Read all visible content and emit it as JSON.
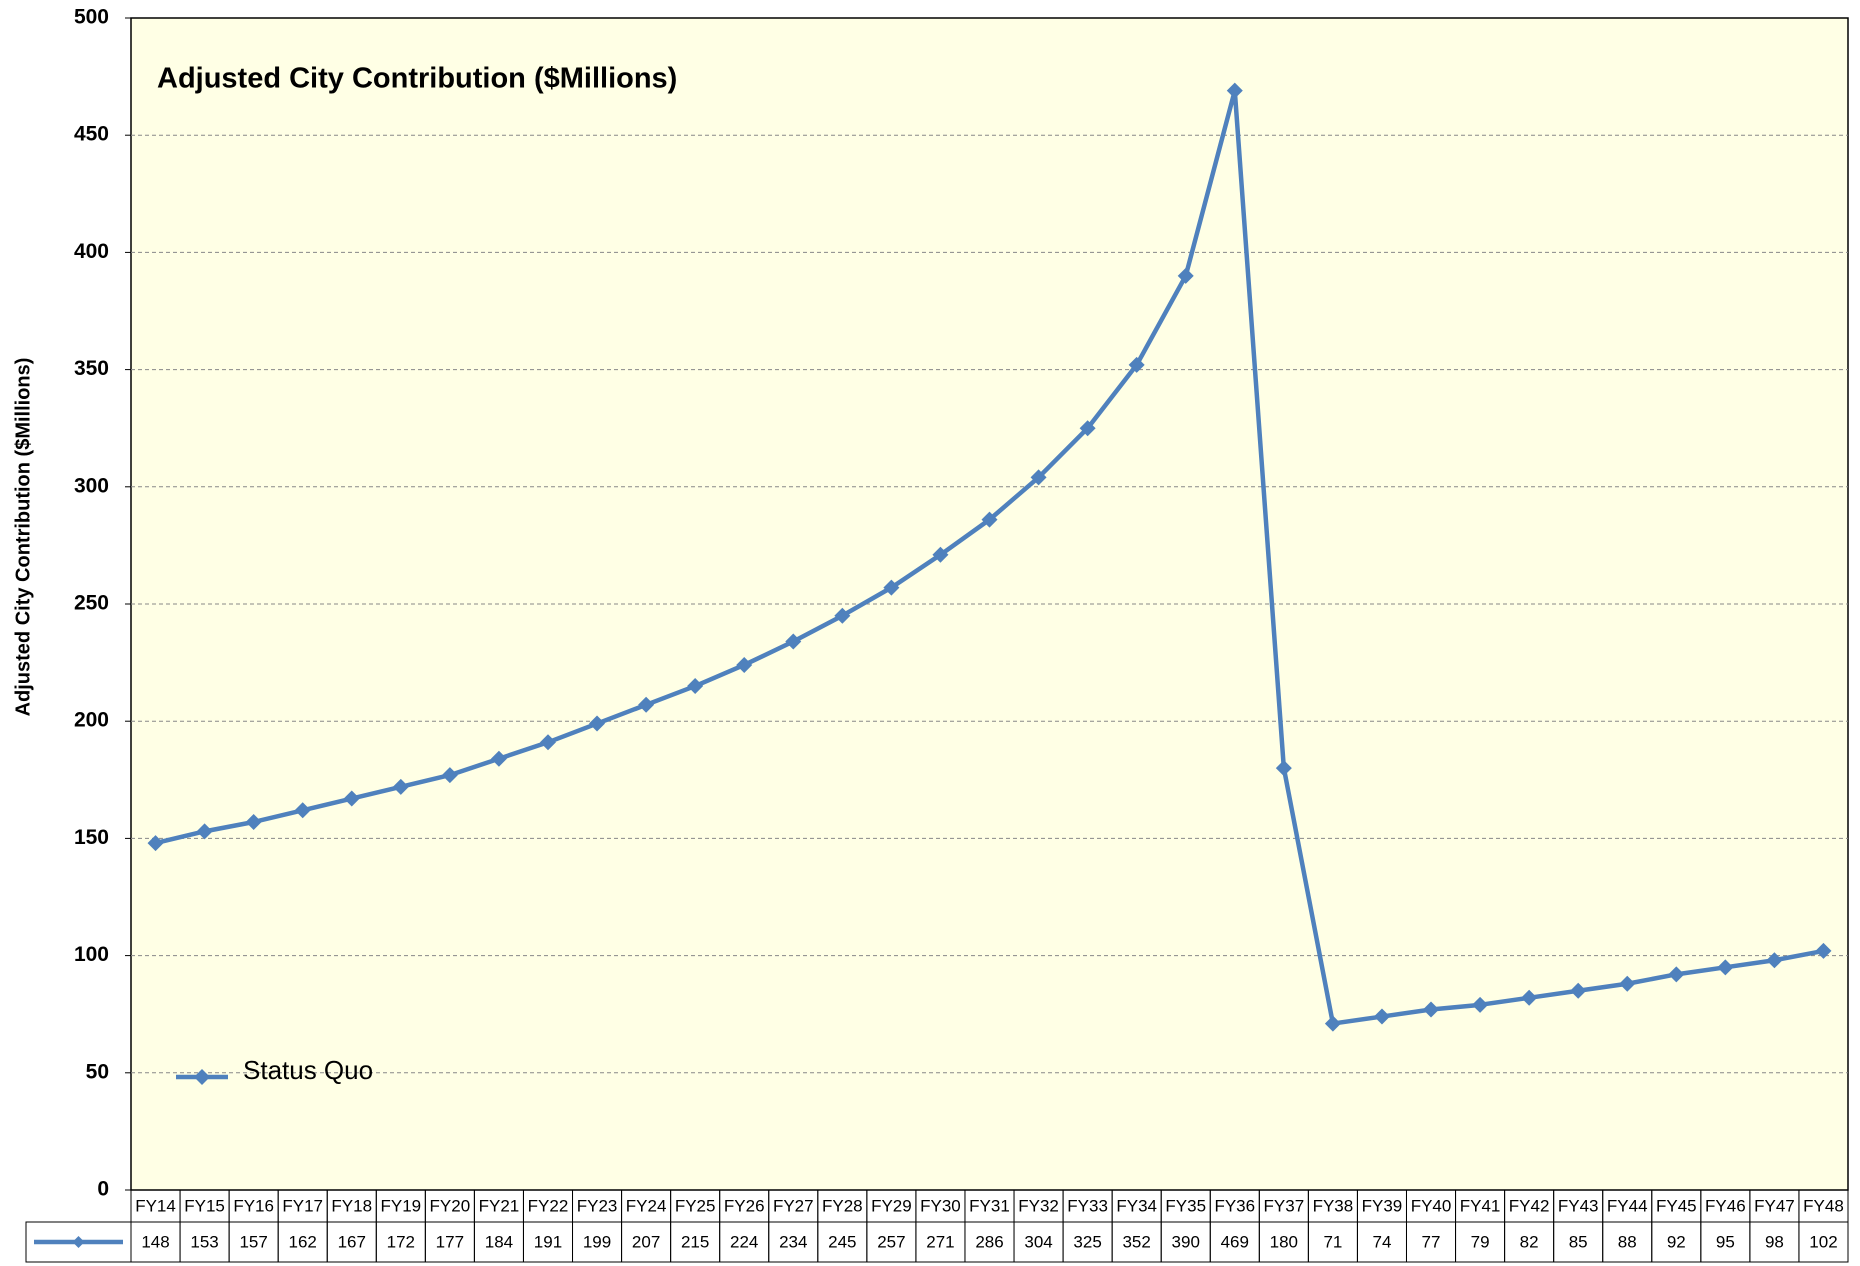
{
  "chart_data": {
    "type": "line",
    "title": "Adjusted City Contribution ($Millions)",
    "y_axis_label": "Adjusted City Contribution  ($Millions)",
    "categories": [
      "FY14",
      "FY15",
      "FY16",
      "FY17",
      "FY18",
      "FY19",
      "FY20",
      "FY21",
      "FY22",
      "FY23",
      "FY24",
      "FY25",
      "FY26",
      "FY27",
      "FY28",
      "FY29",
      "FY30",
      "FY31",
      "FY32",
      "FY33",
      "FY34",
      "FY35",
      "FY36",
      "FY37",
      "FY38",
      "FY39",
      "FY40",
      "FY41",
      "FY42",
      "FY43",
      "FY44",
      "FY45",
      "FY46",
      "FY47",
      "FY48"
    ],
    "series": [
      {
        "name": "Status Quo",
        "color": "#4f81bd",
        "values": [
          148,
          153,
          157,
          162,
          167,
          172,
          177,
          184,
          191,
          199,
          207,
          215,
          224,
          234,
          245,
          257,
          271,
          286,
          304,
          325,
          352,
          390,
          469,
          180,
          71,
          74,
          77,
          79,
          82,
          85,
          88,
          92,
          95,
          98,
          102
        ]
      }
    ],
    "ylim": [
      0,
      500
    ],
    "yticks": [
      0,
      50,
      100,
      150,
      200,
      250,
      300,
      350,
      400,
      450,
      500
    ],
    "grid": true,
    "legend_position": "lower left",
    "data_table": true
  }
}
